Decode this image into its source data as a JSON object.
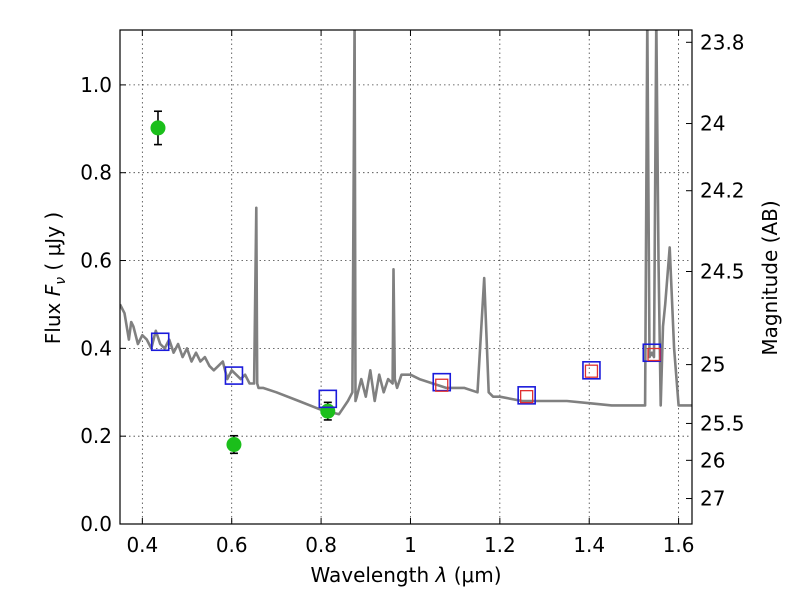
{
  "chart_data": {
    "type": "scatter",
    "title": "",
    "xlabel": "Wavelength",
    "xlabel_symbol": "λ",
    "xlabel_unit": "(μm)",
    "ylabel": "Flux",
    "ylabel_symbol": "F",
    "ylabel_subscript": "ν",
    "ylabel_unit": "( μJy )",
    "y2label": "Magnitude (AB)",
    "xlim": [
      0.35,
      1.63
    ],
    "ylim": [
      0.0,
      1.125
    ],
    "grid": true,
    "x_ticks": [
      0.4,
      0.6,
      0.8,
      1.0,
      1.2,
      1.4,
      1.6
    ],
    "x_tick_labels": [
      "0.4",
      "0.6",
      "0.8",
      "1",
      "1.2",
      "1.4",
      "1.6"
    ],
    "y_ticks": [
      0.0,
      0.2,
      0.4,
      0.6,
      0.8,
      1.0
    ],
    "y_tick_labels": [
      "0.0",
      "0.2",
      "0.4",
      "0.6",
      "0.8",
      "1.0"
    ],
    "y2_ticks": [
      {
        "label": "23.8",
        "flux": 1.097
      },
      {
        "label": "24",
        "flux": 0.912
      },
      {
        "label": "24.2",
        "flux": 0.759
      },
      {
        "label": "24.5",
        "flux": 0.575
      },
      {
        "label": "25",
        "flux": 0.363
      },
      {
        "label": "25.5",
        "flux": 0.229
      },
      {
        "label": "26",
        "flux": 0.145
      },
      {
        "label": "27",
        "flux": 0.058
      }
    ],
    "series": [
      {
        "kind": "line",
        "color": "#808080",
        "x": [
          0.35,
          0.36,
          0.37,
          0.375,
          0.38,
          0.39,
          0.4,
          0.41,
          0.42,
          0.43,
          0.44,
          0.45,
          0.46,
          0.47,
          0.48,
          0.49,
          0.5,
          0.51,
          0.52,
          0.53,
          0.54,
          0.55,
          0.56,
          0.57,
          0.58,
          0.59,
          0.6,
          0.61,
          0.62,
          0.63,
          0.64,
          0.65,
          0.655,
          0.657,
          0.66,
          0.67,
          0.7,
          0.75,
          0.8,
          0.84,
          0.86,
          0.87,
          0.875,
          0.877,
          0.88,
          0.89,
          0.9,
          0.91,
          0.92,
          0.93,
          0.94,
          0.95,
          0.96,
          0.962,
          0.965,
          0.97,
          0.98,
          1.0,
          1.02,
          1.05,
          1.08,
          1.1,
          1.12,
          1.15,
          1.165,
          1.175,
          1.185,
          1.2,
          1.25,
          1.3,
          1.35,
          1.4,
          1.45,
          1.5,
          1.525,
          1.53,
          1.535,
          1.54,
          1.545,
          1.55,
          1.555,
          1.56,
          1.565,
          1.57,
          1.58,
          1.59,
          1.6,
          1.61,
          1.63
        ],
        "y": [
          0.5,
          0.48,
          0.42,
          0.46,
          0.45,
          0.41,
          0.43,
          0.42,
          0.4,
          0.44,
          0.41,
          0.4,
          0.42,
          0.39,
          0.41,
          0.38,
          0.4,
          0.37,
          0.39,
          0.37,
          0.38,
          0.36,
          0.35,
          0.36,
          0.37,
          0.33,
          0.35,
          0.34,
          0.33,
          0.34,
          0.32,
          0.32,
          0.72,
          0.32,
          0.31,
          0.31,
          0.3,
          0.28,
          0.26,
          0.25,
          0.28,
          0.3,
          1.15,
          0.28,
          0.29,
          0.33,
          0.29,
          0.35,
          0.28,
          0.34,
          0.3,
          0.33,
          0.32,
          0.58,
          0.33,
          0.31,
          0.34,
          0.34,
          0.33,
          0.32,
          0.31,
          0.31,
          0.31,
          0.3,
          0.56,
          0.3,
          0.29,
          0.29,
          0.28,
          0.28,
          0.28,
          0.275,
          0.27,
          0.27,
          0.27,
          1.15,
          0.38,
          0.39,
          0.38,
          1.15,
          0.6,
          0.27,
          0.45,
          0.5,
          0.63,
          0.4,
          0.27,
          0.27,
          0.27
        ]
      },
      {
        "kind": "errorbar",
        "color": "#1bbf1b",
        "x": [
          0.435,
          0.605,
          0.815
        ],
        "y": [
          0.902,
          0.181,
          0.257
        ],
        "yerr": [
          0.038,
          0.02,
          0.02
        ]
      },
      {
        "kind": "open-square",
        "color": "#1a1adb",
        "x": [
          0.44,
          0.605,
          0.815,
          1.07,
          1.26,
          1.405,
          1.54
        ],
        "y": [
          0.415,
          0.338,
          0.285,
          0.323,
          0.293,
          0.35,
          0.39
        ]
      },
      {
        "kind": "open-square-small",
        "color": "#e03030",
        "x": [
          1.07,
          1.26,
          1.405,
          1.545
        ],
        "y": [
          0.316,
          0.29,
          0.348,
          0.386
        ]
      }
    ]
  }
}
